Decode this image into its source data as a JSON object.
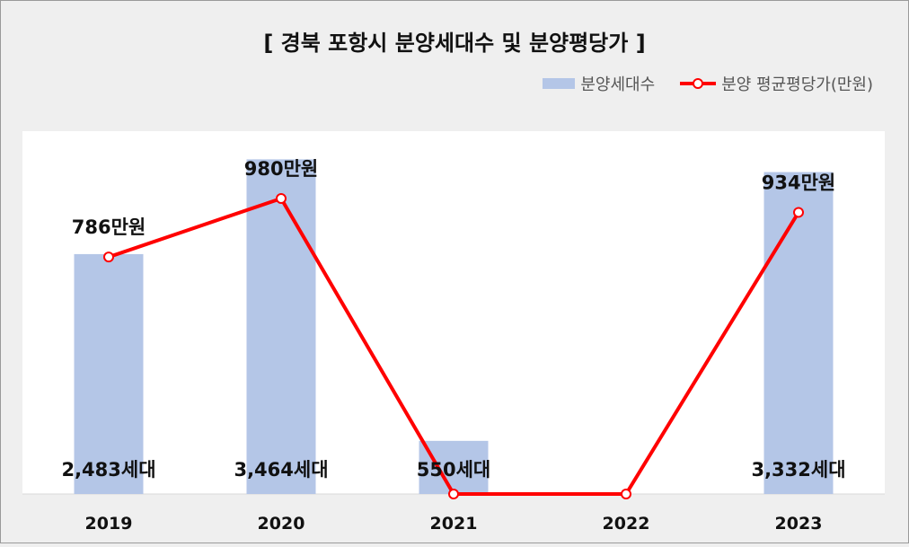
{
  "chart_data": {
    "type": "bar",
    "title": "[ 경북 포항시 분양세대수 및 분양평당가 ]",
    "categories": [
      "2019",
      "2020",
      "2021",
      "2022",
      "2023"
    ],
    "series": [
      {
        "name": "분양세대수",
        "type": "bar",
        "values": [
          2483,
          3464,
          550,
          0,
          3332
        ],
        "labels": [
          "2,483세대",
          "3,464세대",
          "550세대",
          "",
          "3,332세대"
        ],
        "color": "#b4c6e7"
      },
      {
        "name": "분양 평균평당가(만원)",
        "type": "line",
        "values": [
          786,
          980,
          0,
          0,
          934
        ],
        "labels": [
          "786만원",
          "980만원",
          "",
          "",
          "934만원"
        ],
        "color": "#ff0000"
      }
    ],
    "legend_position": "top-right",
    "grid": false
  }
}
